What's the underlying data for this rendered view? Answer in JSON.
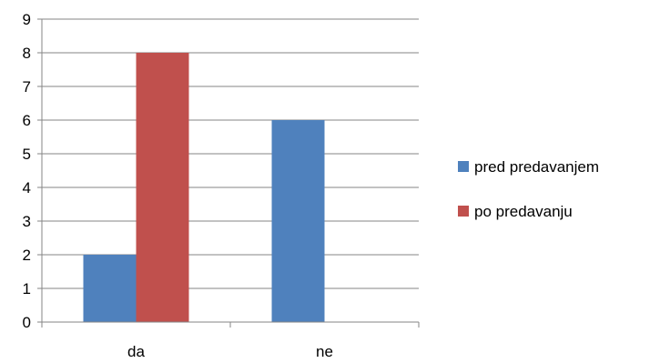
{
  "chart_data": {
    "type": "bar",
    "categories": [
      "da",
      "ne"
    ],
    "series": [
      {
        "name": "pred predavanjem",
        "values": [
          2,
          6
        ],
        "color": "#4F81BD"
      },
      {
        "name": "po predavanju",
        "values": [
          8,
          0
        ],
        "color": "#C0504D"
      }
    ],
    "title": "",
    "xlabel": "",
    "ylabel": "",
    "ylim": [
      0,
      9
    ],
    "yticks": [
      0,
      1,
      2,
      3,
      4,
      5,
      6,
      7,
      8,
      9
    ],
    "grid": true,
    "legend_position": "right"
  }
}
